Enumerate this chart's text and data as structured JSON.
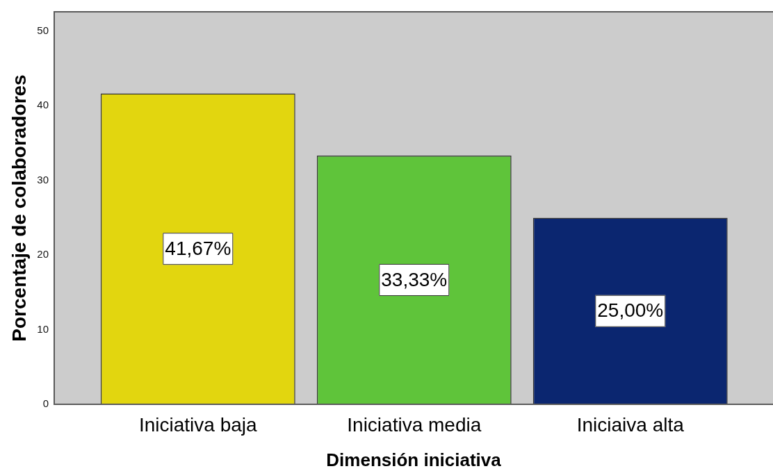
{
  "chart_data": {
    "type": "bar",
    "xlabel": "Dimensión iniciativa",
    "ylabel": "Porcentaje de colaboradores",
    "categories": [
      "Iniciativa baja",
      "Iniciativa media",
      "Iniciaiva alta"
    ],
    "values": [
      41.67,
      33.33,
      25.0
    ],
    "colors": [
      "#e2d60f",
      "#5fc43a",
      "#0b2670"
    ],
    "value_labels": [
      "41,67%",
      "33,33%",
      "25,00%"
    ],
    "ylim": [
      0,
      52.6
    ],
    "yticks": [
      0,
      10,
      20,
      30,
      40,
      50
    ]
  }
}
